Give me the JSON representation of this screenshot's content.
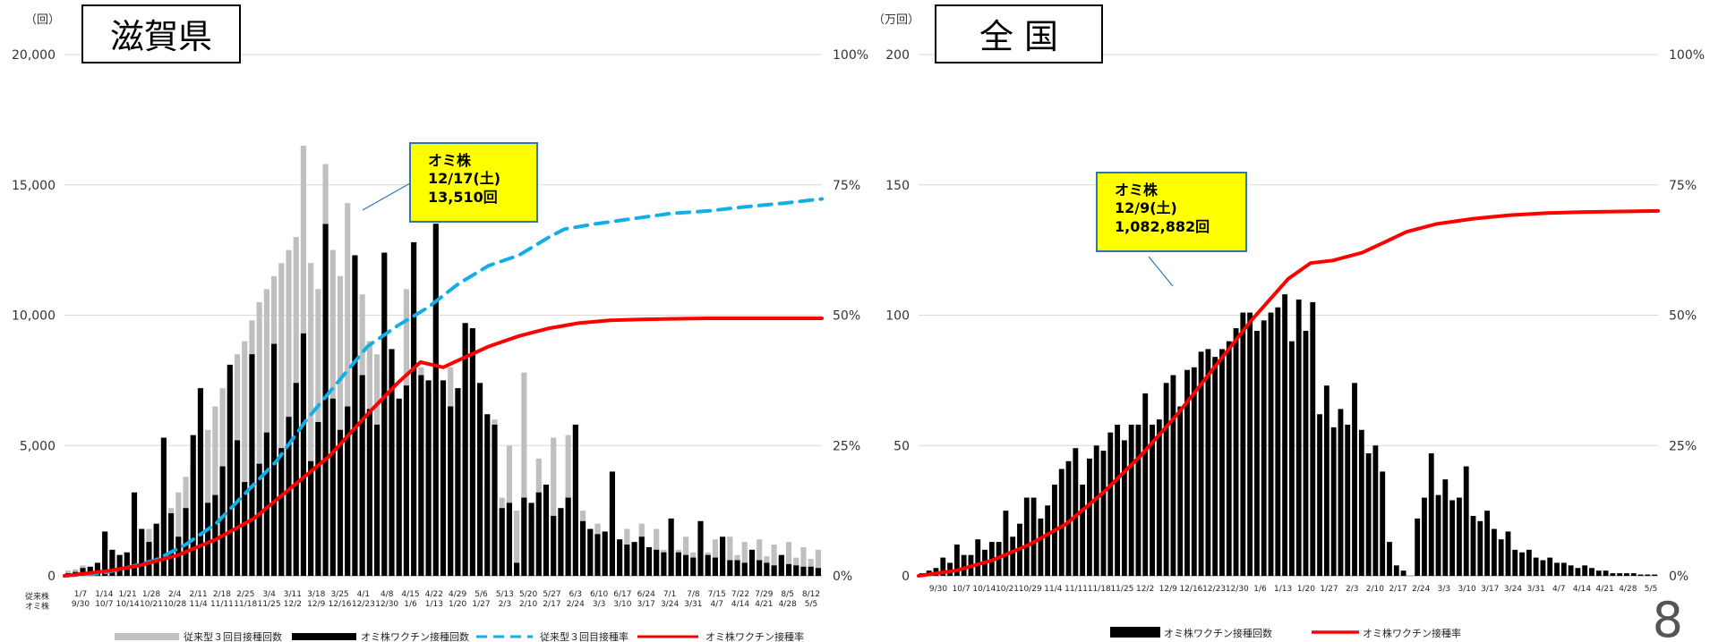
{
  "page_number": "8",
  "colors": {
    "gray_bars": "#bfbfbf",
    "black_bars": "#000000",
    "blue_dash": "#13aee8",
    "red_line": "#ff0000",
    "callout_fill": "#ffff00",
    "callout_border": "#2e75b6",
    "grid": "#d9d9d9"
  },
  "chart_data": [
    {
      "type": "bar",
      "title": "滋賀県",
      "unit_left": "（回）",
      "y_left_ticks": [
        "0",
        "5,000",
        "10,000",
        "15,000",
        "20,000"
      ],
      "y_right_ticks": [
        "0%",
        "25%",
        "50%",
        "75%",
        "100%"
      ],
      "ylim": [
        0,
        20000
      ],
      "y2lim": [
        0,
        100
      ],
      "row_labels": [
        "従来株",
        "オミ株"
      ],
      "x_ticks_top": [
        "1/7",
        "1/14",
        "1/21",
        "1/28",
        "2/4",
        "2/11",
        "2/18",
        "2/25",
        "3/4",
        "3/11",
        "3/18",
        "3/25",
        "4/1",
        "4/8",
        "4/15",
        "4/22",
        "4/29",
        "5/6",
        "5/13",
        "5/20",
        "5/27",
        "6/3",
        "6/10",
        "6/17",
        "6/24",
        "7/1",
        "7/8",
        "7/15",
        "7/22",
        "7/29",
        "8/5",
        "8/12"
      ],
      "x_ticks_bottom": [
        "9/30",
        "10/7",
        "10/14",
        "10/21",
        "10/28",
        "11/4",
        "11/11",
        "11/18",
        "11/25",
        "12/2",
        "12/9",
        "12/16",
        "12/23",
        "12/30",
        "1/6",
        "1/13",
        "1/20",
        "1/27",
        "2/3",
        "2/10",
        "2/17",
        "2/24",
        "3/3",
        "3/10",
        "3/17",
        "3/24",
        "3/31",
        "4/7",
        "4/14",
        "4/21",
        "4/28",
        "5/5"
      ],
      "series": [
        {
          "name": "従来型３回目接種回数",
          "kind": "bar",
          "color": "#bfbfbf",
          "values": [
            200,
            250,
            400,
            350,
            500,
            600,
            700,
            800,
            900,
            1200,
            1500,
            1800,
            2000,
            2200,
            2600,
            3200,
            3800,
            4200,
            5000,
            5600,
            6500,
            7200,
            7800,
            8500,
            9000,
            9800,
            10500,
            11000,
            11500,
            12000,
            12500,
            13000,
            16500,
            12000,
            11000,
            15800,
            12500,
            11500,
            14300,
            12000,
            10800,
            9000,
            8500,
            7800,
            7000,
            6000,
            11000,
            10000,
            8000,
            7000,
            10500,
            6000,
            8000,
            5000,
            9000,
            4000,
            7000,
            3500,
            6000,
            3000,
            5000,
            2500,
            7800,
            2200,
            4500,
            2000,
            5300,
            2000,
            5400,
            1800,
            2500,
            1600,
            2000,
            1400,
            2500,
            1300,
            1800,
            1200,
            2000,
            1100,
            1800,
            1000,
            2200,
            1000,
            1500,
            900,
            1800,
            900,
            1400,
            800,
            1500,
            800,
            1300,
            750,
            1400,
            750,
            1200,
            700,
            1300,
            700,
            1100,
            650,
            1000
          ]
        },
        {
          "name": "オミ株ワクチン接種回数",
          "kind": "bar",
          "color": "#000000",
          "values": [
            100,
            150,
            300,
            350,
            500,
            1700,
            1000,
            800,
            900,
            3200,
            1800,
            1300,
            2000,
            5300,
            2400,
            1500,
            2600,
            5400,
            7200,
            2800,
            3100,
            4200,
            8100,
            5200,
            3600,
            8500,
            4300,
            5500,
            8900,
            4900,
            6100,
            7400,
            9300,
            4400,
            5900,
            13500,
            6800,
            5600,
            6500,
            12300,
            7700,
            6400,
            5800,
            12400,
            8700,
            6800,
            7300,
            12800,
            7700,
            7500,
            13510,
            7500,
            6500,
            7200,
            9700,
            9500,
            7400,
            6200,
            5800,
            2600,
            2800,
            500,
            3000,
            2800,
            3200,
            3500,
            2300,
            2600,
            3000,
            5800,
            2100,
            1800,
            1600,
            1700,
            4000,
            1400,
            1200,
            1300,
            1500,
            1100,
            1000,
            900,
            2200,
            900,
            800,
            700,
            2100,
            800,
            700,
            1500,
            600,
            600,
            500,
            1000,
            600,
            500,
            400,
            800,
            450,
            400,
            350,
            350,
            300
          ]
        },
        {
          "name": "従来型３回目接種率",
          "kind": "line",
          "color": "#13aee8",
          "x_frac": [
            0,
            0.05,
            0.08,
            0.12,
            0.16,
            0.2,
            0.24,
            0.28,
            0.32,
            0.36,
            0.4,
            0.44,
            0.48,
            0.52,
            0.56,
            0.6,
            0.64,
            0.66,
            0.7,
            0.75,
            0.8,
            0.85,
            0.9,
            0.95,
            1.0
          ],
          "values": [
            0,
            0.5,
            1.5,
            3,
            6,
            10,
            16,
            22,
            30,
            37,
            44,
            48,
            51.5,
            56,
            59.5,
            61.5,
            65,
            66.5,
            67.5,
            68.5,
            69.5,
            70,
            70.8,
            71.5,
            72.3
          ]
        },
        {
          "name": "オミ株ワクチン接種率",
          "kind": "line",
          "color": "#ff0000",
          "x_frac": [
            0,
            0.06,
            0.1,
            0.15,
            0.2,
            0.25,
            0.3,
            0.35,
            0.4,
            0.44,
            0.47,
            0.5,
            0.53,
            0.56,
            0.6,
            0.64,
            0.68,
            0.72,
            0.76,
            0.8,
            0.85,
            0.9,
            0.95,
            1.0
          ],
          "values": [
            0,
            1,
            2,
            4,
            7,
            11,
            17,
            23,
            31,
            37,
            41,
            40,
            42,
            44,
            46,
            47.5,
            48.5,
            49,
            49.2,
            49.3,
            49.4,
            49.4,
            49.4,
            49.4
          ]
        }
      ],
      "callout": {
        "lines": [
          "オミ株",
          "12/17(土)",
          "13,510回"
        ]
      }
    },
    {
      "type": "bar",
      "title": "全 国",
      "unit_left": "（万回）",
      "y_left_ticks": [
        "0",
        "50",
        "100",
        "150",
        "200"
      ],
      "y_right_ticks": [
        "0%",
        "25%",
        "50%",
        "75%",
        "100%"
      ],
      "ylim": [
        0,
        200
      ],
      "y2lim": [
        0,
        100
      ],
      "x_ticks": [
        "9/30",
        "10/7",
        "10/14",
        "10/21",
        "10/29",
        "11/4",
        "11/11",
        "11/18",
        "11/25",
        "12/2",
        "12/9",
        "12/16",
        "12/23",
        "12/30",
        "1/6",
        "1/13",
        "1/20",
        "1/27",
        "2/3",
        "2/10",
        "2/17",
        "2/24",
        "3/3",
        "3/10",
        "3/17",
        "3/24",
        "3/31",
        "4/7",
        "4/14",
        "4/21",
        "4/28",
        "5/5"
      ],
      "series": [
        {
          "name": "オミ株ワクチン接種回数",
          "kind": "bar",
          "color": "#000000",
          "values": [
            1,
            2,
            3,
            7,
            5,
            12,
            8,
            8,
            14,
            10,
            13,
            13,
            25,
            15,
            20,
            30,
            30,
            22,
            27,
            35,
            41,
            44,
            49,
            35,
            45,
            50,
            48,
            55,
            58,
            52,
            58,
            58,
            70,
            58,
            60,
            74,
            77,
            65,
            79,
            80,
            86,
            87,
            84,
            87,
            90,
            95,
            101,
            101,
            94,
            98,
            101,
            103,
            108,
            90,
            106,
            94,
            105,
            62,
            73,
            57,
            64,
            58,
            74,
            56,
            47,
            50,
            40,
            13,
            4,
            2,
            0,
            22,
            30,
            47,
            31,
            37,
            29,
            30,
            42,
            23,
            21,
            25,
            18,
            14,
            17,
            10,
            9,
            10,
            7,
            6,
            7,
            5,
            5,
            4,
            3,
            4,
            3,
            2,
            2,
            1,
            1,
            1,
            1,
            0.5,
            0.5,
            0.5
          ]
        },
        {
          "name": "オミ株ワクチン接種率",
          "kind": "line",
          "color": "#ff0000",
          "x_frac": [
            0,
            0.05,
            0.1,
            0.15,
            0.2,
            0.25,
            0.3,
            0.35,
            0.4,
            0.45,
            0.5,
            0.53,
            0.56,
            0.6,
            0.63,
            0.66,
            0.7,
            0.75,
            0.8,
            0.85,
            0.9,
            0.95,
            1.0
          ],
          "values": [
            0,
            1,
            3,
            6,
            10,
            16,
            23,
            31,
            40,
            49,
            57,
            60,
            60.5,
            62,
            64,
            66,
            67.5,
            68.5,
            69.2,
            69.6,
            69.8,
            69.9,
            70
          ]
        }
      ],
      "callout": {
        "lines": [
          "オミ株",
          "12/9(土)",
          "1,082,882回"
        ]
      }
    }
  ],
  "legend_left": [
    {
      "label": "従来型３回目接種回数",
      "kind": "bar",
      "color": "#bfbfbf"
    },
    {
      "label": "オミ株ワクチン接種回数",
      "kind": "bar",
      "color": "#000000"
    },
    {
      "label": "従来型３回目接種率",
      "kind": "dash",
      "color": "#13aee8"
    },
    {
      "label": "オミ株ワクチン接種率",
      "kind": "line",
      "color": "#ff0000"
    }
  ],
  "legend_right": [
    {
      "label": "オミ株ワクチン接種回数",
      "kind": "bar",
      "color": "#000000"
    },
    {
      "label": "オミ株ワクチン接種率",
      "kind": "line",
      "color": "#ff0000"
    }
  ]
}
